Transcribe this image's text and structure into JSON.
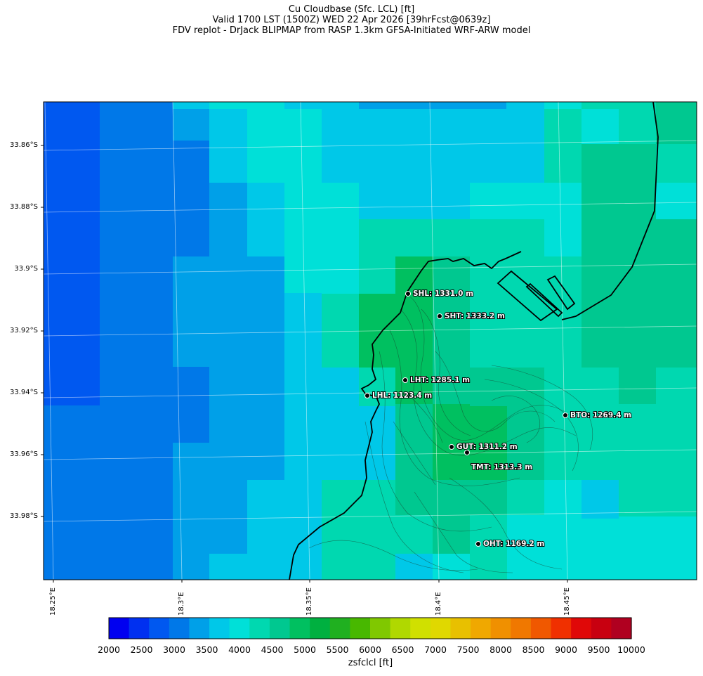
{
  "title": {
    "line1": "Cu Cloudbase (Sfc. LCL) [ft]",
    "line2": "Valid 1700 LST (1500Z) WED 22 Apr 2026 [39hrFcst@0639z]",
    "line3": "FDV replot - DrJack BLIPMAP from RASP 1.3km GFSA-Initiated WRF-ARW model"
  },
  "lat_labels": [
    "33.86°S",
    "33.88°S",
    "33.9°S",
    "33.92°S",
    "33.94°S",
    "33.96°S",
    "33.98°S"
  ],
  "lon_labels": [
    "18.25°E",
    "18.3°E",
    "18.35°E",
    "18.4°E",
    "18.45°E"
  ],
  "stations": [
    {
      "label": "SHL: 1331.0 m"
    },
    {
      "label": "SHT: 1333.2 m"
    },
    {
      "label": "LHT: 1285.1 m"
    },
    {
      "label": "LHL: 1123.4 m"
    },
    {
      "label": "BTO: 1269.4 m"
    },
    {
      "label": "GUT: 1311.2 m"
    },
    {
      "label": "TMT: 1313.3 m"
    },
    {
      "label": "OHT: 1169.2 m"
    }
  ],
  "colorbar": {
    "label": "zsfclcl [ft]",
    "ticks": [
      "2000",
      "2500",
      "3000",
      "3500",
      "4000",
      "4500",
      "5000",
      "5500",
      "6000",
      "6500",
      "7000",
      "7500",
      "8000",
      "8500",
      "9000",
      "9500",
      "10000"
    ],
    "colors": [
      "#0000f0",
      "#0030f0",
      "#0058f0",
      "#0078e8",
      "#00a0e8",
      "#00c8e8",
      "#00e0d8",
      "#00d8b0",
      "#00c890",
      "#00c060",
      "#00b040",
      "#20b020",
      "#48b800",
      "#80c800",
      "#b0d800",
      "#d0e000",
      "#e0d800",
      "#e8c000",
      "#f0a800",
      "#f09000",
      "#f07800",
      "#f05800",
      "#f03000",
      "#e00808",
      "#c80010",
      "#b00020"
    ]
  }
}
